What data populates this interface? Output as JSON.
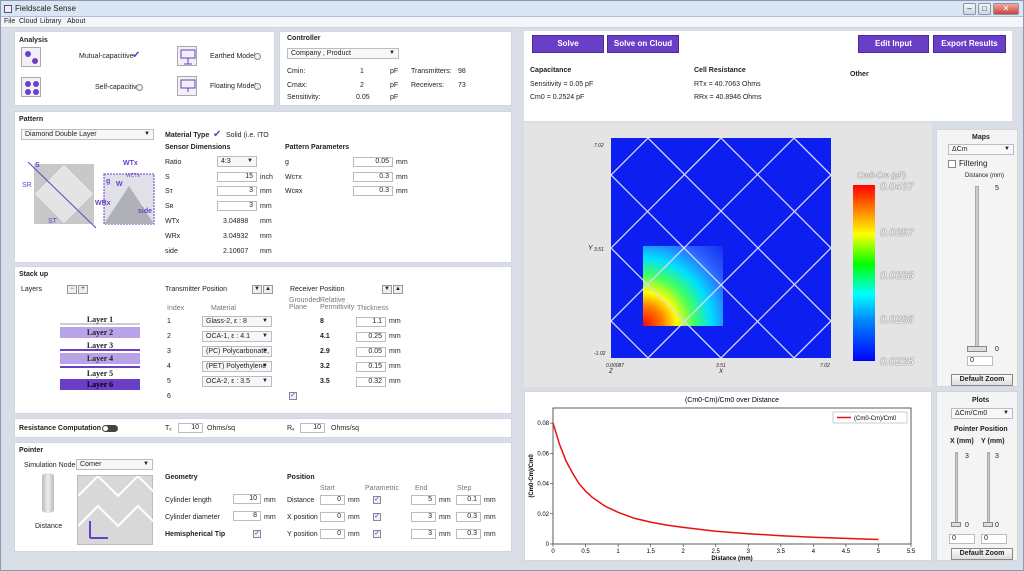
{
  "app": {
    "title": "Fieldscale Sense"
  },
  "menu": [
    "File",
    "Cloud",
    "Library",
    "About"
  ],
  "analysis": {
    "title": "Analysis",
    "mutual": "Mutual-capacitive",
    "self": "Self-capacitive",
    "earthed": "Earthed Model",
    "floating": "Floating Model"
  },
  "controller": {
    "title": "Controller",
    "product": "Company , Product",
    "cmin_l": "Cmin:",
    "cmin_v": "1",
    "cmin_u": "pF",
    "cmax_l": "Cmax:",
    "cmax_v": "2",
    "cmax_u": "pF",
    "sens_l": "Sensitivity:",
    "sens_v": "0.05",
    "sens_u": "pF",
    "tx_l": "Transmitters:",
    "tx_v": "98",
    "rx_l": "Receivers:",
    "rx_v": "73"
  },
  "pattern": {
    "title": "Pattern",
    "type": "Diamond Double Layer",
    "mat_type": "Material Type",
    "solid": "Solid (i.e. ITO",
    "sensor_dim": "Sensor Dimensions",
    "params_title": "Pattern Parameters",
    "dims": [
      {
        "l": "Ratio",
        "v": "4:3",
        "u": ""
      },
      {
        "l": "S",
        "v": "15",
        "u": "inch"
      },
      {
        "l": "Sᴛ",
        "v": "3",
        "u": "mm"
      },
      {
        "l": "Sʀ",
        "v": "3",
        "u": "mm"
      },
      {
        "l": "WTx",
        "v": "3.04898",
        "u": "mm"
      },
      {
        "l": "WRx",
        "v": "3.04932",
        "u": "mm"
      },
      {
        "l": "side",
        "v": "2.10607",
        "u": "mm"
      }
    ],
    "params": [
      {
        "l": "g",
        "v": "0.05",
        "u": "mm"
      },
      {
        "l": "Wᴄᴛx",
        "v": "0.3",
        "u": "mm"
      },
      {
        "l": "Wᴄʀx",
        "v": "0.3",
        "u": "mm"
      }
    ],
    "diag": {
      "s": "S",
      "sr": "SR",
      "st": "ST",
      "wtx": "WTx",
      "g": "g",
      "w": "W",
      "wctx": "WCTx",
      "wrx": "WRx",
      "side": "side"
    }
  },
  "stackup": {
    "title": "Stack up",
    "layers_l": "Layers",
    "tx_pos": "Transmitter Position",
    "rx_pos": "Receiver Position",
    "index_h": "Index",
    "material_h": "Material",
    "grounded_h": "Grounded Plane",
    "relperm_h": "Relative Permittivity",
    "thick_h": "Thickness",
    "layers": [
      "Layer 1",
      "Layer 2",
      "Layer 3",
      "Layer 4",
      "Layer 5",
      "Layer 6"
    ],
    "rows": [
      {
        "i": "1",
        "m": "Glass-2,  ε : 8",
        "p": "8",
        "t": "1.1"
      },
      {
        "i": "2",
        "m": "OCA-1,  ε : 4.1",
        "p": "4.1",
        "t": "0.25"
      },
      {
        "i": "3",
        "m": "(PC) Polycarbonate,",
        "p": "2.9",
        "t": "0.05"
      },
      {
        "i": "4",
        "m": "(PET) Polyethylene",
        "p": "3.2",
        "t": "0.15"
      },
      {
        "i": "5",
        "m": "OCA-2,  ε : 3.5",
        "p": "3.5",
        "t": "0.32"
      },
      {
        "i": "6",
        "m": "",
        "p": "",
        "t": ""
      }
    ],
    "unit": "mm"
  },
  "resistance": {
    "title": "Resistance Computation",
    "tx_l": "Tₓ",
    "tx_v": "10",
    "rx_l": "Rₓ",
    "rx_v": "10",
    "unit": "Ohms/sq"
  },
  "pointer": {
    "title": "Pointer",
    "sim_l": "Simulation Node",
    "sim_v": "Corner",
    "distance_l": "Distance",
    "geom": "Geometry",
    "cyl_len_l": "Cylinder length",
    "cyl_len_v": "10",
    "cyl_dia_l": "Cylinder diameter",
    "cyl_dia_v": "8",
    "hemi": "Hemispherical Tip",
    "unit": "mm",
    "position": "Position",
    "start_h": "Start",
    "param_h": "Parametric",
    "end_h": "End",
    "step_h": "Step",
    "rows": [
      {
        "l": "Distance",
        "s": "0",
        "e": "5",
        "st": "0.1"
      },
      {
        "l": "X position",
        "s": "0",
        "e": "3",
        "st": "0.3"
      },
      {
        "l": "Y position",
        "s": "0",
        "e": "3",
        "st": "0.3"
      }
    ]
  },
  "toolbar": {
    "solve": "Solve",
    "solve_cloud": "Solve on Cloud",
    "edit": "Edit Input",
    "export": "Export Results"
  },
  "results": {
    "cap_title": "Capacitance",
    "cap1": "Sensitivity = 0.05 pF",
    "cap2": "Cm0 = 0.2524 pF",
    "cell_title": "Cell Resistance",
    "rtx": "RTx = 40.7063 Ohms",
    "rrx": "RRx = 40.8946 Ohms",
    "other": "Other"
  },
  "heatmap": {
    "legend_title": "Cm0-Cm (pF)",
    "ticks": [
      "0.0437",
      "0.0387",
      "0.0336",
      "0.0286",
      "0.0235"
    ],
    "y_tick_top": "7.02",
    "y_tick_mid": "3.51",
    "y_label": "Y",
    "y_tick_bot": "-1.02",
    "x_tick_left": "0.00087",
    "x_label_left": "Z",
    "x_tick_mid": "3.51",
    "x_label_mid": "X",
    "x_tick_right": "7.02"
  },
  "maps": {
    "title": "Maps",
    "sel": "ΔCm",
    "filtering": "Filtering",
    "distance_l": "Distance (mm)",
    "top": "5",
    "bot": "0",
    "val": "0",
    "zoom": "Default Zoom"
  },
  "plots": {
    "title": "Plots",
    "sel": "ΔCm/Cm0",
    "pp": "Pointer Position",
    "x_l": "X (mm)",
    "y_l": "Y (mm)",
    "x_top": "3",
    "y_top": "3",
    "x_bot": "0",
    "y_bot": "0",
    "x_val": "0",
    "y_val": "0",
    "zoom": "Default Zoom"
  },
  "chart_data": {
    "type": "line",
    "title": "(Cm0-Cm)/Cm0 over Distance",
    "xlabel": "Distance (mm)",
    "ylabel": "(Cm0-Cm)/Cm0",
    "xlim": [
      0,
      5.5
    ],
    "ylim": [
      0,
      0.09
    ],
    "xticks": [
      "0",
      "0.5",
      "1",
      "1.5",
      "2",
      "2.5",
      "3",
      "3.5",
      "4",
      "4.5",
      "5",
      "5.5"
    ],
    "yticks": [
      "0",
      "0.02",
      "0.04",
      "0.06",
      "0.08"
    ],
    "series": [
      {
        "name": "(Cm0-Cm)/Cm0",
        "color": "#e81010",
        "x": [
          0,
          0.05,
          0.1,
          0.2,
          0.3,
          0.4,
          0.5,
          0.6,
          0.8,
          1,
          1.25,
          1.5,
          1.75,
          2,
          2.5,
          3,
          3.5,
          4,
          4.5,
          5
        ],
        "y": [
          0.08,
          0.073,
          0.066,
          0.055,
          0.047,
          0.04,
          0.035,
          0.031,
          0.025,
          0.021,
          0.017,
          0.0145,
          0.0125,
          0.011,
          0.0085,
          0.0068,
          0.0055,
          0.0045,
          0.0037,
          0.003
        ]
      }
    ],
    "legend": "top-right",
    "grid": false
  }
}
